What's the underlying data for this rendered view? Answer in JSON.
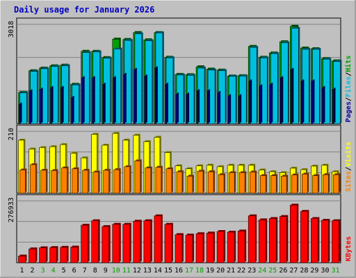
{
  "title": "Daily usage for January 2026",
  "colors": {
    "page_bg": "#C0C0C0",
    "plot_bg": "#C0C0C0",
    "title": "#0000C0",
    "grid": "#808080",
    "hits": "#00A000",
    "files": "#00C0E0",
    "pages": "#0000A0",
    "visits": "#FFFF00",
    "sites": "#FF8000",
    "kbytes": "#FF0000",
    "weekend_label": "#00A000",
    "weekday_label": "#000000"
  },
  "chart_data": [
    {
      "type": "bar",
      "name": "hits-files-pages",
      "ylim": [
        0,
        3018
      ],
      "max_label": "3018",
      "legend": [
        "Pages",
        "Files",
        "Hits"
      ],
      "categories": [
        "1",
        "2",
        "3",
        "4",
        "5",
        "6",
        "7",
        "8",
        "9",
        "10",
        "11",
        "12",
        "13",
        "14",
        "15",
        "16",
        "17",
        "18",
        "19",
        "20",
        "21",
        "22",
        "23",
        "24",
        "25",
        "26",
        "27",
        "28",
        "29",
        "30",
        "31"
      ],
      "series": [
        {
          "name": "Hits",
          "values": [
            950,
            1610,
            1690,
            1760,
            1780,
            1200,
            2200,
            2200,
            2010,
            2570,
            2560,
            2770,
            2550,
            2770,
            2020,
            1500,
            1490,
            1730,
            1660,
            1630,
            1450,
            1460,
            2350,
            2020,
            2150,
            2490,
            2960,
            2300,
            2280,
            1980,
            1910
          ]
        },
        {
          "name": "Files",
          "values": [
            940,
            1590,
            1670,
            1740,
            1760,
            1180,
            2160,
            2180,
            1990,
            2270,
            2530,
            2730,
            2520,
            2760,
            2000,
            1480,
            1470,
            1690,
            1630,
            1610,
            1440,
            1450,
            2320,
            2000,
            2130,
            2460,
            2900,
            2260,
            2260,
            1960,
            1890
          ]
        },
        {
          "name": "Pages",
          "values": [
            600,
            1000,
            1050,
            1100,
            1100,
            800,
            1400,
            1400,
            1200,
            1400,
            1500,
            1650,
            1450,
            1700,
            1200,
            900,
            900,
            1000,
            1000,
            950,
            850,
            850,
            1300,
            1150,
            1200,
            1400,
            1650,
            1300,
            1300,
            1100,
            1050
          ]
        }
      ]
    },
    {
      "type": "bar",
      "name": "visits-sites",
      "ylim": [
        0,
        210
      ],
      "max_label": "210",
      "legend": [
        "Sites",
        "Visits"
      ],
      "series": [
        {
          "name": "Visits",
          "values": [
            180,
            150,
            155,
            158,
            165,
            136,
            120,
            200,
            163,
            203,
            180,
            197,
            175,
            190,
            138,
            93,
            83,
            93,
            95,
            90,
            95,
            95,
            95,
            79,
            73,
            70,
            85,
            80,
            92,
            95,
            73
          ]
        },
        {
          "name": "Sites",
          "values": [
            79,
            97,
            78,
            77,
            86,
            83,
            78,
            72,
            78,
            80,
            90,
            110,
            86,
            88,
            83,
            73,
            58,
            75,
            73,
            63,
            70,
            70,
            72,
            60,
            60,
            58,
            62,
            65,
            60,
            63,
            63
          ]
        }
      ]
    },
    {
      "type": "bar",
      "name": "kbytes",
      "ylim": [
        0,
        276933
      ],
      "max_label": "276933",
      "legend": [
        "KBytes"
      ],
      "series": [
        {
          "name": "KBytes",
          "values": [
            30000,
            62000,
            67000,
            68000,
            69000,
            70000,
            168000,
            188000,
            162000,
            172000,
            172000,
            186000,
            188000,
            210000,
            172000,
            126000,
            124000,
            130000,
            133000,
            140000,
            137000,
            142000,
            210000,
            192000,
            198000,
            207000,
            258000,
            230000,
            198000,
            190000,
            188000
          ]
        }
      ]
    }
  ],
  "weekend_days": [
    "3",
    "4",
    "10",
    "11",
    "17",
    "18",
    "24",
    "25",
    "31"
  ]
}
